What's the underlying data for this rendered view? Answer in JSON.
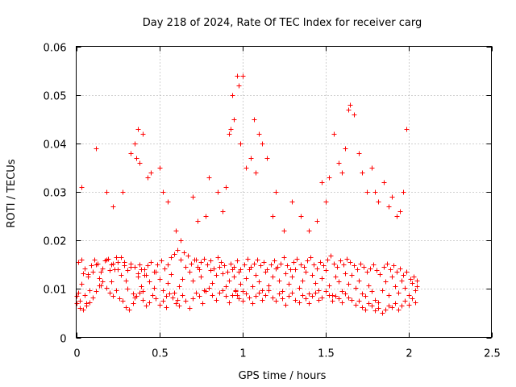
{
  "chart_data": {
    "type": "scatter",
    "title": "Day 218 of 2024, Rate Of TEC Index for receiver carg",
    "xlabel": "GPS time / hours",
    "ylabel": "ROTI / TECUs",
    "xlim": [
      0,
      2.5
    ],
    "ylim": [
      0,
      0.06
    ],
    "xticks": [
      "0",
      "0.5",
      "1",
      "1.5",
      "2",
      "2.5"
    ],
    "yticks": [
      "0",
      "0.01",
      "0.02",
      "0.03",
      "0.04",
      "0.05",
      "0.06"
    ],
    "grid": true,
    "marker": "+",
    "color": "#ff0000",
    "series": [
      {
        "name": "ROTI",
        "x": [
          0.0,
          0.01,
          0.02,
          0.03,
          0.04,
          0.05,
          0.06,
          0.07,
          0.08,
          0.1,
          0.12,
          0.14,
          0.15,
          0.16,
          0.18,
          0.2,
          0.21,
          0.22,
          0.24,
          0.25,
          0.27,
          0.29,
          0.3,
          0.31,
          0.33,
          0.34,
          0.35,
          0.37,
          0.38,
          0.39,
          0.4,
          0.41,
          0.42,
          0.44,
          0.46,
          0.47,
          0.48,
          0.5,
          0.52,
          0.54,
          0.55,
          0.57,
          0.59,
          0.61,
          0.62,
          0.64,
          0.66,
          0.68,
          0.7,
          0.72,
          0.74,
          0.75,
          0.77,
          0.79,
          0.81,
          0.82,
          0.84,
          0.86,
          0.88,
          0.9,
          0.92,
          0.93,
          0.94,
          0.95,
          0.96,
          0.97,
          0.98,
          0.99,
          1.0,
          1.02,
          1.04,
          1.06,
          1.08,
          1.1,
          1.12,
          1.14,
          1.16,
          1.18,
          1.2,
          1.22,
          1.24,
          1.26,
          1.28,
          1.3,
          1.32,
          1.34,
          1.36,
          1.38,
          1.4,
          1.42,
          1.44,
          1.46,
          1.48,
          1.5,
          1.52,
          1.54,
          1.56,
          1.58,
          1.6,
          1.62,
          1.64,
          1.66,
          1.68,
          1.7,
          1.72,
          1.74,
          1.76,
          1.78,
          1.8,
          1.82,
          1.84,
          1.86,
          1.88,
          1.9,
          1.92,
          1.94,
          1.96,
          1.98,
          2.0,
          2.02,
          2.04,
          2.05,
          0.0,
          0.02,
          0.04,
          0.06,
          0.08,
          0.1,
          0.12,
          0.14,
          0.16,
          0.18,
          0.2,
          0.22,
          0.24,
          0.26,
          0.28,
          0.3,
          0.32,
          0.34,
          0.36,
          0.38,
          0.4,
          0.42,
          0.44,
          0.46,
          0.48,
          0.5,
          0.52,
          0.54,
          0.56,
          0.58,
          0.6,
          0.62,
          0.64,
          0.66,
          0.68,
          0.7,
          0.72,
          0.74,
          0.76,
          0.78,
          0.8,
          0.82,
          0.84,
          0.86,
          0.88,
          0.9,
          0.92,
          0.94,
          0.96,
          0.98,
          1.0,
          1.02,
          1.04,
          1.06,
          1.08,
          1.1,
          1.12,
          1.14,
          1.16,
          1.18,
          1.2,
          1.22,
          1.24,
          1.26,
          1.28,
          1.3,
          1.32,
          1.34,
          1.36,
          1.38,
          1.4,
          1.42,
          1.44,
          1.46,
          1.48,
          1.5,
          1.52,
          1.54,
          1.56,
          1.58,
          1.6,
          1.62,
          1.64,
          1.66,
          1.68,
          1.7,
          1.72,
          1.74,
          1.76,
          1.78,
          1.8,
          1.82,
          1.84,
          1.86,
          1.88,
          1.9,
          1.92,
          1.94,
          1.96,
          1.98,
          2.0,
          2.02,
          2.04,
          0.01,
          0.03,
          0.05,
          0.07,
          0.09,
          0.11,
          0.13,
          0.15,
          0.17,
          0.19,
          0.21,
          0.23,
          0.25,
          0.27,
          0.29,
          0.31,
          0.33,
          0.35,
          0.37,
          0.39,
          0.41,
          0.43,
          0.45,
          0.47,
          0.49,
          0.51,
          0.53,
          0.55,
          0.57,
          0.59,
          0.61,
          0.63,
          0.65,
          0.67,
          0.69,
          0.71,
          0.73,
          0.75,
          0.77,
          0.79,
          0.81,
          0.83,
          0.85,
          0.87,
          0.89,
          0.91,
          0.93,
          0.95,
          0.97,
          0.99,
          1.01,
          1.03,
          1.05,
          1.07,
          1.09,
          1.11,
          1.13,
          1.15,
          1.17,
          1.19,
          1.21,
          1.23,
          1.25,
          1.27,
          1.29,
          1.31,
          1.33,
          1.35,
          1.37,
          1.39,
          1.41,
          1.43,
          1.45,
          1.47,
          1.49,
          1.51,
          1.53,
          1.55,
          1.57,
          1.59,
          1.61,
          1.63,
          1.65,
          1.67,
          1.69,
          1.71,
          1.73,
          1.75,
          1.77,
          1.79,
          1.81,
          1.83,
          1.85,
          1.87,
          1.89,
          1.91,
          1.93,
          1.95,
          1.97,
          1.99,
          2.01,
          2.03,
          2.05,
          0.03,
          0.12,
          0.18,
          0.22,
          0.28,
          0.33,
          0.35,
          0.36,
          0.37,
          0.38,
          0.4,
          0.43,
          0.45,
          0.5,
          0.52,
          0.55,
          0.6,
          0.63,
          0.7,
          0.73,
          0.78,
          0.8,
          0.85,
          0.88,
          0.9,
          0.92,
          0.93,
          0.94,
          0.95,
          0.97,
          0.98,
          0.99,
          1.0,
          1.02,
          1.05,
          1.07,
          1.08,
          1.1,
          1.12,
          1.15,
          1.18,
          1.2,
          1.25,
          1.3,
          1.35,
          1.4,
          1.45,
          1.48,
          1.5,
          1.52,
          1.55,
          1.58,
          1.6,
          1.62,
          1.64,
          1.65,
          1.67,
          1.7,
          1.72,
          1.75,
          1.78,
          1.8,
          1.82,
          1.85,
          1.88,
          1.9,
          1.93,
          1.95,
          1.97,
          1.99
        ],
        "y": [
          0.0085,
          0.0092,
          0.0075,
          0.011,
          0.0132,
          0.0088,
          0.007,
          0.0125,
          0.0098,
          0.0135,
          0.015,
          0.0122,
          0.0108,
          0.0142,
          0.016,
          0.0138,
          0.0115,
          0.0152,
          0.0165,
          0.014,
          0.0128,
          0.0155,
          0.0118,
          0.01,
          0.0145,
          0.009,
          0.0082,
          0.0125,
          0.015,
          0.0105,
          0.0095,
          0.014,
          0.0128,
          0.0115,
          0.0088,
          0.0102,
          0.0135,
          0.012,
          0.0098,
          0.0085,
          0.0112,
          0.013,
          0.0092,
          0.0078,
          0.0105,
          0.012,
          0.0145,
          0.0135,
          0.0118,
          0.016,
          0.014,
          0.0125,
          0.0098,
          0.015,
          0.0138,
          0.0112,
          0.0128,
          0.0145,
          0.0132,
          0.0105,
          0.0118,
          0.0152,
          0.014,
          0.0125,
          0.0098,
          0.0088,
          0.0135,
          0.011,
          0.0095,
          0.0122,
          0.014,
          0.0105,
          0.0128,
          0.0115,
          0.0098,
          0.0135,
          0.0108,
          0.0125,
          0.0142,
          0.0118,
          0.0095,
          0.0132,
          0.011,
          0.0125,
          0.014,
          0.0102,
          0.0118,
          0.0135,
          0.009,
          0.0128,
          0.0112,
          0.0098,
          0.0122,
          0.0138,
          0.0108,
          0.0088,
          0.0125,
          0.0115,
          0.0095,
          0.0132,
          0.011,
          0.0128,
          0.0102,
          0.0118,
          0.009,
          0.0085,
          0.0108,
          0.0095,
          0.0078,
          0.0072,
          0.0098,
          0.0115,
          0.0088,
          0.0125,
          0.0105,
          0.0092,
          0.0118,
          0.0102,
          0.0088,
          0.0112,
          0.0098,
          0.0105,
          0.007,
          0.006,
          0.0058,
          0.0065,
          0.0072,
          0.0082,
          0.0095,
          0.0108,
          0.0115,
          0.0102,
          0.0092,
          0.0085,
          0.0098,
          0.008,
          0.0075,
          0.0062,
          0.0058,
          0.007,
          0.0085,
          0.0092,
          0.0078,
          0.0065,
          0.0072,
          0.0088,
          0.008,
          0.0068,
          0.0075,
          0.0062,
          0.009,
          0.0082,
          0.007,
          0.0065,
          0.0088,
          0.0075,
          0.006,
          0.008,
          0.0092,
          0.0085,
          0.007,
          0.0095,
          0.0102,
          0.0088,
          0.0078,
          0.0092,
          0.0098,
          0.0085,
          0.0072,
          0.0088,
          0.0095,
          0.008,
          0.0075,
          0.009,
          0.0082,
          0.007,
          0.0085,
          0.0092,
          0.0078,
          0.0088,
          0.0098,
          0.0082,
          0.0075,
          0.009,
          0.008,
          0.0068,
          0.0085,
          0.0092,
          0.0078,
          0.0072,
          0.0088,
          0.008,
          0.007,
          0.0085,
          0.0092,
          0.0078,
          0.0082,
          0.0095,
          0.0088,
          0.0075,
          0.0085,
          0.008,
          0.0072,
          0.009,
          0.0082,
          0.0078,
          0.0068,
          0.0075,
          0.0062,
          0.0058,
          0.007,
          0.0065,
          0.0055,
          0.006,
          0.005,
          0.0058,
          0.0065,
          0.0062,
          0.007,
          0.0058,
          0.0065,
          0.0075,
          0.0068,
          0.008,
          0.0072,
          0.0155,
          0.016,
          0.0142,
          0.013,
          0.0148,
          0.016,
          0.0152,
          0.0135,
          0.0158,
          0.0162,
          0.015,
          0.014,
          0.0155,
          0.0165,
          0.0148,
          0.0138,
          0.0152,
          0.0145,
          0.0132,
          0.014,
          0.0128,
          0.0148,
          0.0155,
          0.0135,
          0.015,
          0.0158,
          0.0142,
          0.015,
          0.0165,
          0.0172,
          0.018,
          0.016,
          0.0175,
          0.0168,
          0.0152,
          0.016,
          0.0145,
          0.0155,
          0.0162,
          0.015,
          0.0158,
          0.0142,
          0.0165,
          0.0155,
          0.0148,
          0.0135,
          0.0152,
          0.0145,
          0.0158,
          0.014,
          0.015,
          0.0162,
          0.0145,
          0.0152,
          0.016,
          0.0148,
          0.0155,
          0.014,
          0.015,
          0.0158,
          0.0145,
          0.0152,
          0.0165,
          0.0148,
          0.014,
          0.0155,
          0.0162,
          0.015,
          0.0145,
          0.0158,
          0.0165,
          0.015,
          0.0142,
          0.0155,
          0.0148,
          0.016,
          0.0168,
          0.0152,
          0.0145,
          0.0158,
          0.015,
          0.0162,
          0.0155,
          0.0148,
          0.014,
          0.0152,
          0.0145,
          0.0135,
          0.0142,
          0.015,
          0.0138,
          0.013,
          0.0145,
          0.0152,
          0.014,
          0.0148,
          0.0135,
          0.0142,
          0.0128,
          0.0135,
          0.012,
          0.0125,
          0.0118,
          0.031,
          0.039,
          0.03,
          0.027,
          0.03,
          0.038,
          0.04,
          0.037,
          0.043,
          0.036,
          0.042,
          0.033,
          0.034,
          0.035,
          0.03,
          0.028,
          0.022,
          0.02,
          0.029,
          0.024,
          0.025,
          0.033,
          0.03,
          0.026,
          0.031,
          0.042,
          0.043,
          0.05,
          0.045,
          0.054,
          0.052,
          0.04,
          0.054,
          0.035,
          0.037,
          0.045,
          0.034,
          0.042,
          0.04,
          0.037,
          0.025,
          0.03,
          0.022,
          0.028,
          0.025,
          0.022,
          0.024,
          0.032,
          0.028,
          0.033,
          0.042,
          0.036,
          0.034,
          0.039,
          0.047,
          0.048,
          0.046,
          0.038,
          0.034,
          0.03,
          0.035,
          0.03,
          0.028,
          0.032,
          0.027,
          0.029,
          0.025,
          0.026,
          0.03,
          0.043
        ]
      }
    ]
  }
}
